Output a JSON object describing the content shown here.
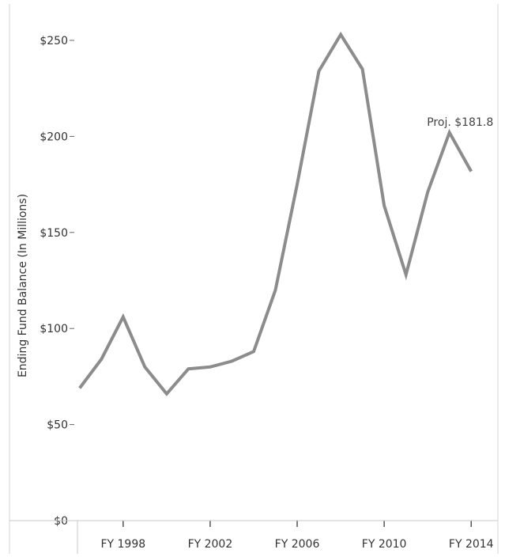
{
  "chart_data": {
    "type": "line",
    "title": "",
    "xlabel": "",
    "ylabel": "Ending Fund Balance (In Millions)",
    "ylim": [
      0,
      250
    ],
    "y_ticks": [
      {
        "value": 0,
        "label": "$0"
      },
      {
        "value": 50,
        "label": "$50"
      },
      {
        "value": 100,
        "label": "$100"
      },
      {
        "value": 150,
        "label": "$150"
      },
      {
        "value": 200,
        "label": "$200"
      },
      {
        "value": 250,
        "label": "$250"
      }
    ],
    "xlim": [
      1995.9,
      2014.5
    ],
    "x_ticks": [
      {
        "value": 1998,
        "label": "FY 1998"
      },
      {
        "value": 2002,
        "label": "FY 2002"
      },
      {
        "value": 2006,
        "label": "FY 2006"
      },
      {
        "value": 2010,
        "label": "FY 2010"
      },
      {
        "value": 2014,
        "label": "FY 2014"
      }
    ],
    "series": [
      {
        "color": "#8c8c8c",
        "x": [
          1996,
          1997,
          1998,
          1999,
          2000,
          2001,
          2002,
          2003,
          2004,
          2005,
          2006,
          2007,
          2008,
          2009,
          2010,
          2011,
          2012,
          2013,
          2014
        ],
        "values": [
          69,
          84,
          106,
          80,
          66,
          79,
          80,
          83,
          88,
          120,
          175,
          234,
          253,
          235,
          164,
          128,
          171,
          202,
          181.8
        ]
      }
    ],
    "annotations": [
      {
        "text": "Proj. $181.8",
        "x": 2014,
        "y": 181.8
      }
    ],
    "grid": false
  }
}
